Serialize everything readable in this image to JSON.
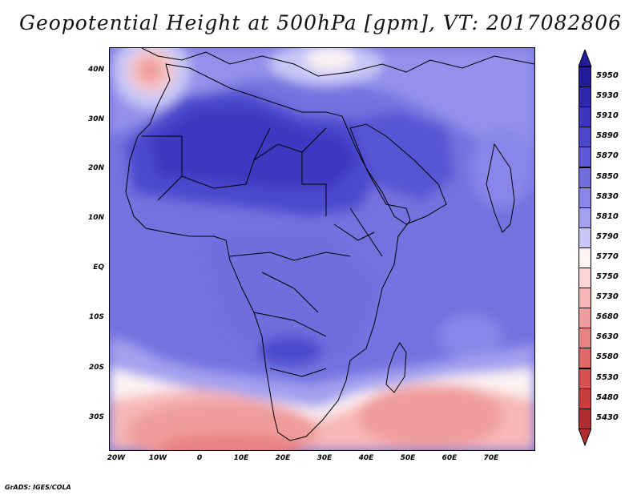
{
  "title": "Geopotential Height at 500hPa [gpm], VT: 2017082806",
  "credit": "GrADS: IGES/COLA",
  "map": {
    "variable": "Geopotential Height at 500hPa",
    "units": "gpm",
    "valid_time": "2017082806",
    "region": "Africa",
    "lat_range": [
      -37,
      45
    ],
    "lon_range": [
      -23,
      80
    ]
  },
  "axes": {
    "lat_labels": [
      "40N",
      "30N",
      "20N",
      "10N",
      "EQ",
      "10S",
      "20S",
      "30S"
    ],
    "lon_labels": [
      "20W",
      "10W",
      "0",
      "10E",
      "20E",
      "30E",
      "40E",
      "50E",
      "60E",
      "70E"
    ]
  },
  "colorbar": {
    "levels": [
      "5950",
      "5930",
      "5910",
      "5890",
      "5870",
      "5850",
      "5830",
      "5810",
      "5790",
      "5770",
      "5750",
      "5730",
      "5680",
      "5630",
      "5580",
      "5530",
      "5480",
      "5430"
    ],
    "colors": {
      "5950": "#201c9c",
      "5930": "#2d29ac",
      "5910": "#3a36bd",
      "5890": "#4a47cc",
      "5870": "#5d5ad7",
      "5850": "#716fe0",
      "5830": "#8886e8",
      "5810": "#a3a1ef",
      "5790": "#c8c7f7",
      "5770": "#fdf3f3",
      "5750": "#fbd5d5",
      "5730": "#f7b7b7",
      "5680": "#f09c9c",
      "5630": "#e88181",
      "5580": "#e06868",
      "5530": "#d85252",
      "5480": "#c93d3d",
      "5430": "#b22d2d"
    }
  }
}
